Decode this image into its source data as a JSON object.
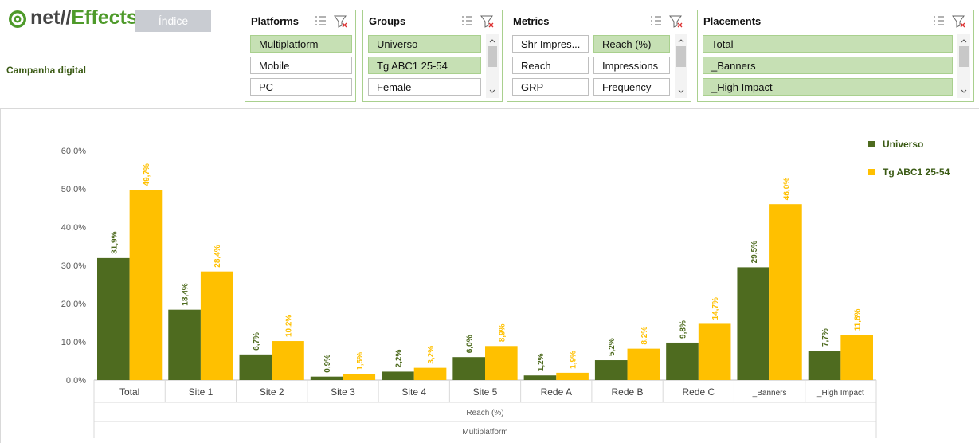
{
  "header": {
    "logo_part_1": "net//",
    "logo_part_2": "Effects",
    "button": "Índice",
    "subtitle": "Campanha digital"
  },
  "slicers": [
    {
      "title": "Platforms",
      "columns": 1,
      "scroll": false,
      "items": [
        {
          "label": "Multiplatform",
          "selected": true
        },
        {
          "label": "Mobile",
          "selected": false
        },
        {
          "label": "PC",
          "selected": false
        }
      ]
    },
    {
      "title": "Groups",
      "columns": 1,
      "scroll": true,
      "items": [
        {
          "label": "Universo",
          "selected": true
        },
        {
          "label": "Tg ABC1 25-54",
          "selected": true
        },
        {
          "label": "Female",
          "selected": false
        }
      ]
    },
    {
      "title": "Metrics",
      "columns": 2,
      "scroll": true,
      "items": [
        {
          "label": "Shr Impres...",
          "selected": false
        },
        {
          "label": "Reach (%)",
          "selected": true
        },
        {
          "label": "Reach",
          "selected": false
        },
        {
          "label": "Impressions",
          "selected": false
        },
        {
          "label": "GRP",
          "selected": false
        },
        {
          "label": "Frequency",
          "selected": false
        }
      ]
    },
    {
      "title": "Placements",
      "columns": 1,
      "scroll": true,
      "items": [
        {
          "label": "Total",
          "selected": true
        },
        {
          "label": "_Banners",
          "selected": true
        },
        {
          "label": "_High Impact",
          "selected": true
        }
      ]
    }
  ],
  "chart_data": {
    "type": "bar",
    "categories": [
      "Total",
      "Site 1",
      "Site 2",
      "Site 3",
      "Site 4",
      "Site 5",
      "Rede A",
      "Rede B",
      "Rede C",
      "_Banners",
      "_High Impact"
    ],
    "x_axis_levels": [
      "Reach (%)",
      "Multiplatform"
    ],
    "series": [
      {
        "name": "Universo",
        "color": "#4e6b1f",
        "values": [
          31.9,
          18.4,
          6.7,
          0.9,
          2.2,
          6.0,
          1.2,
          5.2,
          9.8,
          29.5,
          7.7
        ],
        "value_labels": [
          "31,9%",
          "18,4%",
          "6,7%",
          "0,9%",
          "2,2%",
          "6,0%",
          "1,2%",
          "5,2%",
          "9,8%",
          "29,5%",
          "7,7%"
        ]
      },
      {
        "name": "Tg ABC1 25-54",
        "color": "#ffc000",
        "values": [
          49.7,
          28.4,
          10.2,
          1.5,
          3.2,
          8.9,
          1.9,
          8.2,
          14.7,
          46.0,
          11.8
        ],
        "value_labels": [
          "49,7%",
          "28,4%",
          "10,2%",
          "1,5%",
          "3,2%",
          "8,9%",
          "1,9%",
          "8,2%",
          "14,7%",
          "46,0%",
          "11,8%"
        ]
      }
    ],
    "ylim": [
      0,
      60
    ],
    "yticks": [
      {
        "value": 0,
        "label": "0,0%"
      },
      {
        "value": 10,
        "label": "10,0%"
      },
      {
        "value": 20,
        "label": "20,0%"
      },
      {
        "value": 30,
        "label": "30,0%"
      },
      {
        "value": 40,
        "label": "40,0%"
      },
      {
        "value": 50,
        "label": "50,0%"
      },
      {
        "value": 60,
        "label": "60,0%"
      }
    ],
    "grid": false,
    "legend": "top-right"
  }
}
